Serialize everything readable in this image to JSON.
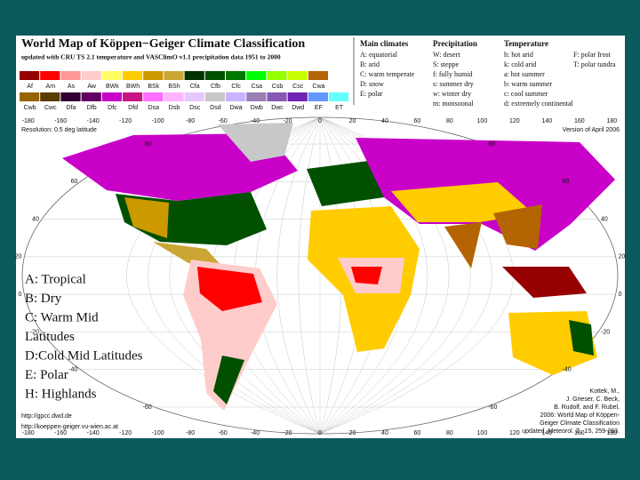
{
  "title": "World Map of Köppen−Geiger Climate Classification",
  "subtitle": "updated with CRU TS 2.1 temperature and VASClimO v1.1 precipitation data 1951 to 2000",
  "legend_rows": [
    [
      {
        "code": "Af",
        "color": "#960000"
      },
      {
        "code": "Am",
        "color": "#ff0000"
      },
      {
        "code": "As",
        "color": "#ff9999"
      },
      {
        "code": "Aw",
        "color": "#ffcccc"
      },
      {
        "code": "BWk",
        "color": "#ffff64"
      },
      {
        "code": "BWh",
        "color": "#ffcc00"
      },
      {
        "code": "BSk",
        "color": "#cc9900"
      },
      {
        "code": "BSh",
        "color": "#cca633"
      },
      {
        "code": "Cfa",
        "color": "#003200"
      },
      {
        "code": "Cfb",
        "color": "#005000"
      },
      {
        "code": "Cfc",
        "color": "#007800"
      },
      {
        "code": "Csa",
        "color": "#00ff00"
      },
      {
        "code": "Csb",
        "color": "#96ff00"
      },
      {
        "code": "Csc",
        "color": "#c8ff00"
      },
      {
        "code": "Cwa",
        "color": "#b46400"
      }
    ],
    [
      {
        "code": "Cwb",
        "color": "#966400"
      },
      {
        "code": "Cwc",
        "color": "#5a3c00"
      },
      {
        "code": "Dfa",
        "color": "#320032"
      },
      {
        "code": "Dfb",
        "color": "#640064"
      },
      {
        "code": "Dfc",
        "color": "#c800c8"
      },
      {
        "code": "Dfd",
        "color": "#c71585"
      },
      {
        "code": "Dsa",
        "color": "#ff6dff"
      },
      {
        "code": "Dsb",
        "color": "#ffb4ff"
      },
      {
        "code": "Dsc",
        "color": "#e6c8ff"
      },
      {
        "code": "Dsd",
        "color": "#c8c8c8"
      },
      {
        "code": "Dwa",
        "color": "#c8b4ff"
      },
      {
        "code": "Dwb",
        "color": "#9a7fb3"
      },
      {
        "code": "Dwc",
        "color": "#8759b3"
      },
      {
        "code": "Dwd",
        "color": "#6f24b3"
      },
      {
        "code": "EF",
        "color": "#6496ff"
      },
      {
        "code": "ET",
        "color": "#64ffff"
      }
    ]
  ],
  "key": [
    {
      "heading": "Main climates",
      "items": [
        "A: equatorial",
        "B: arid",
        "C: warm temperate",
        "D: snow",
        "E: polar"
      ]
    },
    {
      "heading": "Precipitation",
      "items": [
        "W: desert",
        "S: steppe",
        "f: fully humid",
        "s: summer dry",
        "w: winter dry",
        "m: monsoonal"
      ]
    },
    {
      "heading": "Temperature",
      "items": [
        "h: hot arid",
        "k: cold arid",
        "a: hot summer",
        "b: warm summer",
        "c: cool summer",
        "d: extremely continental"
      ]
    },
    {
      "heading": "",
      "items": [
        "F: polar frost",
        "T: polar tundra"
      ]
    }
  ],
  "resolution": "Resolution: 0.5 deg latitude",
  "version": "Version of April 2006",
  "longitudes": [
    "-180",
    "-160",
    "-140",
    "-120",
    "-100",
    "-80",
    "-60",
    "-40",
    "-20",
    "0",
    "20",
    "40",
    "60",
    "80",
    "100",
    "120",
    "140",
    "160",
    "180"
  ],
  "latitudes": [
    "80",
    "60",
    "40",
    "20",
    "0",
    "-20",
    "-40",
    "-60"
  ],
  "urls": [
    "http://gpcc.dwd.de",
    "http://koeppen-geiger.vu-wien.ac.at"
  ],
  "citation": [
    "Kottek, M.,",
    "J. Grieser, C. Beck,",
    "B. Rudolf, and F. Rubel,",
    "2006: World Map of Köppen-",
    "Geiger Climate Classification",
    "updated. Meteorol. Z., 15, 259-263."
  ],
  "overlay": [
    "A: Tropical",
    "B: Dry",
    "C: Warm Mid",
    "Latitudes",
    "D:Cold Mid Latitudes",
    "E: Polar",
    "H: Highlands"
  ]
}
